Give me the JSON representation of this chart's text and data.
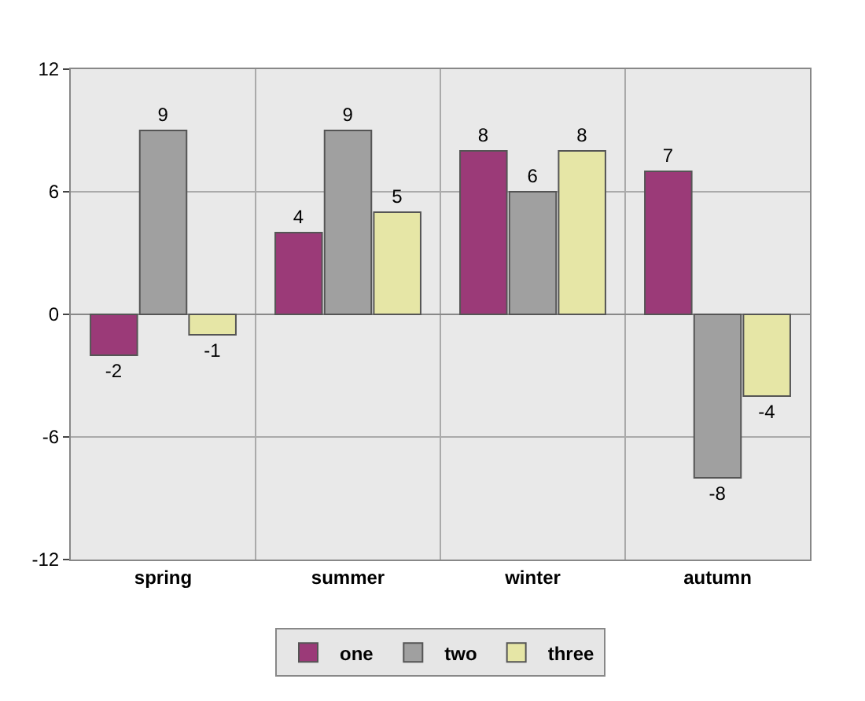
{
  "chart_data": {
    "type": "bar",
    "categories": [
      "spring",
      "summer",
      "winter",
      "autumn"
    ],
    "series": [
      {
        "name": "one",
        "color": "#9b3a78",
        "values": [
          -2,
          4,
          8,
          7
        ]
      },
      {
        "name": "two",
        "color": "#a0a0a0",
        "values": [
          9,
          9,
          6,
          -8
        ]
      },
      {
        "name": "three",
        "color": "#e6e6a6",
        "values": [
          -1,
          5,
          8,
          -4
        ]
      }
    ],
    "ylim": [
      -12,
      12
    ],
    "yticks": [
      -12,
      -6,
      0,
      6,
      12
    ],
    "grid": true,
    "legend": "bottom",
    "data_labels": true
  }
}
